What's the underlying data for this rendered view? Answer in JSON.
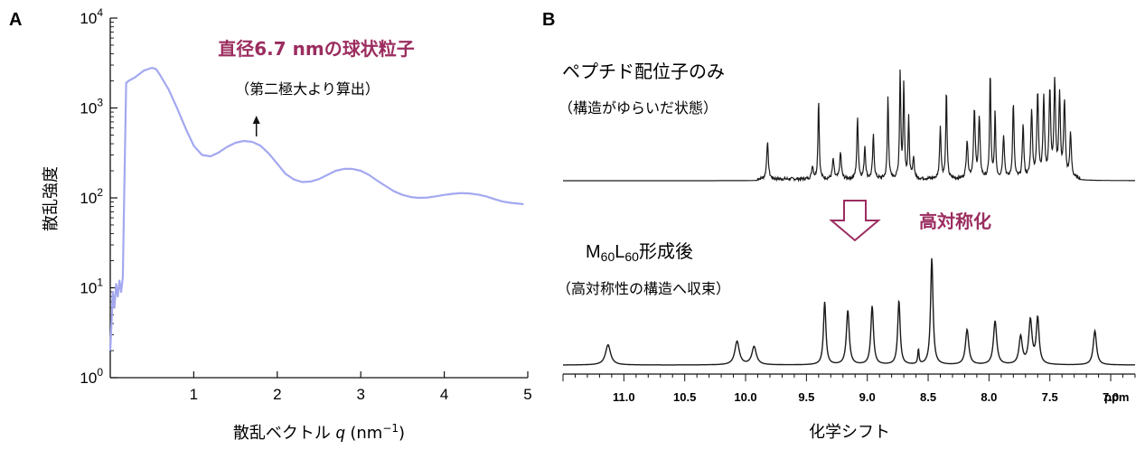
{
  "panel_a_label": "A",
  "panel_b_label": "B",
  "colors": {
    "saxs_curve": "#a3a8f0",
    "accent": "#9b2d5f",
    "nmr": "#1a1a1a"
  },
  "chart_data": [
    {
      "type": "line",
      "panel": "A",
      "xlabel_prefix": "散乱ベクトル ",
      "xlabel_var": "q",
      "xlabel_unit": " (nm",
      "xlabel_exp": "−1",
      "xlabel_close": ")",
      "ylabel": "散乱強度",
      "xlim": [
        0,
        5
      ],
      "ylim": [
        1,
        10000
      ],
      "yscale": "log",
      "x_ticks": [
        "1",
        "2",
        "3",
        "4",
        "5"
      ],
      "y_ticks": [
        {
          "base": "10",
          "exp": "0"
        },
        {
          "base": "10",
          "exp": "1"
        },
        {
          "base": "10",
          "exp": "2"
        },
        {
          "base": "10",
          "exp": "3"
        },
        {
          "base": "10",
          "exp": "4"
        }
      ],
      "annotation_title": "直径6.7 nmの球状粒子",
      "annotation_sub": "（第二極大より算出）",
      "annotation_arrow_at": {
        "x": 1.75,
        "y": 420
      },
      "series": [
        {
          "x": [
            0.0,
            0.02,
            0.03,
            0.05,
            0.07,
            0.09,
            0.11,
            0.13,
            0.15,
            0.17,
            0.19,
            0.22,
            0.3,
            0.4,
            0.5,
            0.55,
            0.6,
            0.7,
            0.8,
            0.9,
            1.0,
            1.1,
            1.2,
            1.3,
            1.4,
            1.5,
            1.6,
            1.7,
            1.8,
            1.9,
            2.0,
            2.1,
            2.2,
            2.3,
            2.4,
            2.5,
            2.6,
            2.7,
            2.8,
            2.9,
            3.0,
            3.1,
            3.2,
            3.3,
            3.4,
            3.5,
            3.6,
            3.7,
            3.8,
            3.9,
            4.0,
            4.1,
            4.2,
            4.3,
            4.4,
            4.5,
            4.6,
            4.7,
            4.8,
            4.9,
            4.95
          ],
          "y": [
            2,
            5,
            9,
            6,
            11,
            8,
            12,
            9,
            13,
            150,
            1900,
            2000,
            2200,
            2600,
            2800,
            2700,
            2300,
            1600,
            1000,
            600,
            380,
            300,
            290,
            320,
            370,
            410,
            430,
            420,
            380,
            310,
            240,
            185,
            160,
            150,
            152,
            162,
            180,
            200,
            210,
            210,
            200,
            180,
            155,
            135,
            118,
            108,
            102,
            100,
            101,
            104,
            108,
            111,
            113,
            112,
            109,
            104,
            97,
            91,
            88,
            86,
            85
          ]
        }
      ]
    },
    {
      "type": "line",
      "panel": "B",
      "xlabel": "化学シフト",
      "x_unit": "ppm",
      "xlim": [
        11.5,
        6.8
      ],
      "x_reversed": true,
      "x_ticks": [
        "11.0",
        "10.5",
        "10.0",
        "9.5",
        "9.0",
        "8.5",
        "8.0",
        "7.5",
        "7.0"
      ],
      "center_label": "高対称化",
      "series": [
        {
          "name_main": "ペプチド配位子のみ",
          "name_sub": "（構造がゆらいだ状態）",
          "peaks": [
            {
              "ppm": 9.82,
              "h": 0.34,
              "w": 0.008
            },
            {
              "ppm": 9.45,
              "h": 0.12,
              "w": 0.008
            },
            {
              "ppm": 9.4,
              "h": 0.74,
              "w": 0.006
            },
            {
              "ppm": 9.28,
              "h": 0.18,
              "w": 0.008
            },
            {
              "ppm": 9.22,
              "h": 0.24,
              "w": 0.008
            },
            {
              "ppm": 9.08,
              "h": 0.56,
              "w": 0.007
            },
            {
              "ppm": 9.02,
              "h": 0.3,
              "w": 0.007
            },
            {
              "ppm": 8.95,
              "h": 0.4,
              "w": 0.007
            },
            {
              "ppm": 8.83,
              "h": 0.76,
              "w": 0.006
            },
            {
              "ppm": 8.73,
              "h": 0.98,
              "w": 0.006
            },
            {
              "ppm": 8.7,
              "h": 0.88,
              "w": 0.006
            },
            {
              "ppm": 8.66,
              "h": 0.55,
              "w": 0.006
            },
            {
              "ppm": 8.62,
              "h": 0.2,
              "w": 0.007
            },
            {
              "ppm": 8.4,
              "h": 0.48,
              "w": 0.007
            },
            {
              "ppm": 8.35,
              "h": 0.82,
              "w": 0.006
            },
            {
              "ppm": 8.18,
              "h": 0.35,
              "w": 0.008
            },
            {
              "ppm": 8.12,
              "h": 0.62,
              "w": 0.008
            },
            {
              "ppm": 8.08,
              "h": 0.55,
              "w": 0.008
            },
            {
              "ppm": 7.99,
              "h": 0.98,
              "w": 0.006
            },
            {
              "ppm": 7.95,
              "h": 0.6,
              "w": 0.006
            },
            {
              "ppm": 7.88,
              "h": 0.4,
              "w": 0.008
            },
            {
              "ppm": 7.8,
              "h": 0.7,
              "w": 0.007
            },
            {
              "ppm": 7.72,
              "h": 0.5,
              "w": 0.007
            },
            {
              "ppm": 7.65,
              "h": 0.62,
              "w": 0.008
            },
            {
              "ppm": 7.6,
              "h": 0.78,
              "w": 0.008
            },
            {
              "ppm": 7.55,
              "h": 0.72,
              "w": 0.008
            },
            {
              "ppm": 7.5,
              "h": 0.8,
              "w": 0.008
            },
            {
              "ppm": 7.46,
              "h": 0.86,
              "w": 0.008
            },
            {
              "ppm": 7.42,
              "h": 0.74,
              "w": 0.008
            },
            {
              "ppm": 7.38,
              "h": 0.7,
              "w": 0.008
            },
            {
              "ppm": 7.33,
              "h": 0.4,
              "w": 0.008
            }
          ]
        },
        {
          "name_main_prefix": "M",
          "name_main_sub1": "60",
          "name_main_mid": "L",
          "name_main_sub2": "60",
          "name_main_suffix": "形成後",
          "name_sub": "（高対称性の構造へ収束）",
          "peaks": [
            {
              "ppm": 11.13,
              "h": 0.19,
              "w": 0.025
            },
            {
              "ppm": 10.07,
              "h": 0.22,
              "w": 0.022
            },
            {
              "ppm": 9.93,
              "h": 0.17,
              "w": 0.022
            },
            {
              "ppm": 9.35,
              "h": 0.59,
              "w": 0.012
            },
            {
              "ppm": 9.16,
              "h": 0.51,
              "w": 0.014
            },
            {
              "ppm": 8.96,
              "h": 0.55,
              "w": 0.013
            },
            {
              "ppm": 8.74,
              "h": 0.6,
              "w": 0.012
            },
            {
              "ppm": 8.58,
              "h": 0.14,
              "w": 0.006
            },
            {
              "ppm": 8.47,
              "h": 1.0,
              "w": 0.012
            },
            {
              "ppm": 8.18,
              "h": 0.33,
              "w": 0.016
            },
            {
              "ppm": 7.95,
              "h": 0.41,
              "w": 0.016
            },
            {
              "ppm": 7.74,
              "h": 0.26,
              "w": 0.016
            },
            {
              "ppm": 7.66,
              "h": 0.41,
              "w": 0.016
            },
            {
              "ppm": 7.6,
              "h": 0.43,
              "w": 0.014
            },
            {
              "ppm": 7.13,
              "h": 0.32,
              "w": 0.016
            }
          ]
        }
      ]
    }
  ]
}
